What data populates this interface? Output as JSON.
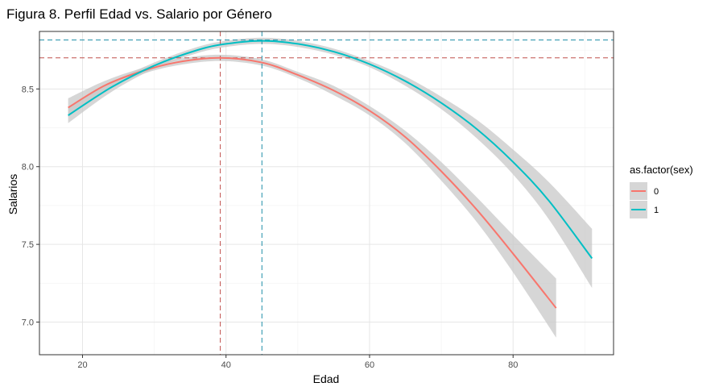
{
  "chart_data": {
    "type": "line",
    "title": "Figura 8. Perfil Edad vs. Salario por Género",
    "xlabel": "Edad",
    "ylabel": "Salarios",
    "xlim": [
      14,
      94
    ],
    "ylim": [
      6.79,
      8.87
    ],
    "xticks": [
      20,
      40,
      60,
      80
    ],
    "yticks": [
      7.0,
      7.5,
      8.0,
      8.5
    ],
    "xtick_labels": [
      "20",
      "40",
      "60",
      "80"
    ],
    "ytick_labels": [
      "7.0",
      "7.5",
      "8.0",
      "8.5"
    ],
    "grid": true,
    "legend": {
      "title": "as.factor(sex)",
      "position": "right"
    },
    "series": [
      {
        "name": "0",
        "color": "#F8766D",
        "x": [
          18,
          23,
          28,
          33,
          39,
          45,
          50,
          55,
          60,
          65,
          70,
          75,
          80,
          86
        ],
        "y": [
          8.38,
          8.52,
          8.61,
          8.67,
          8.7,
          8.67,
          8.59,
          8.49,
          8.36,
          8.19,
          7.97,
          7.72,
          7.44,
          7.09
        ],
        "ci_width": [
          0.06,
          0.03,
          0.02,
          0.02,
          0.02,
          0.02,
          0.02,
          0.03,
          0.03,
          0.04,
          0.06,
          0.08,
          0.12,
          0.19
        ]
      },
      {
        "name": "1",
        "color": "#00BFC4",
        "x": [
          18,
          24,
          30,
          36,
          40,
          45,
          50,
          55,
          60,
          65,
          70,
          75,
          80,
          85,
          91
        ],
        "y": [
          8.33,
          8.51,
          8.65,
          8.75,
          8.79,
          8.81,
          8.79,
          8.74,
          8.66,
          8.55,
          8.41,
          8.24,
          8.03,
          7.78,
          7.41
        ],
        "ci_width": [
          0.05,
          0.03,
          0.02,
          0.02,
          0.02,
          0.02,
          0.02,
          0.02,
          0.02,
          0.03,
          0.04,
          0.06,
          0.08,
          0.12,
          0.19
        ]
      }
    ],
    "reference_lines": [
      {
        "axis": "x",
        "value": 39.2,
        "color": "#C0504D"
      },
      {
        "axis": "x",
        "value": 45.0,
        "color": "#1F8FA8"
      },
      {
        "axis": "y",
        "value": 8.7,
        "color": "#C0504D"
      },
      {
        "axis": "y",
        "value": 8.815,
        "color": "#1F8FA8"
      }
    ],
    "ribbon_color": "#C8C8C8"
  }
}
